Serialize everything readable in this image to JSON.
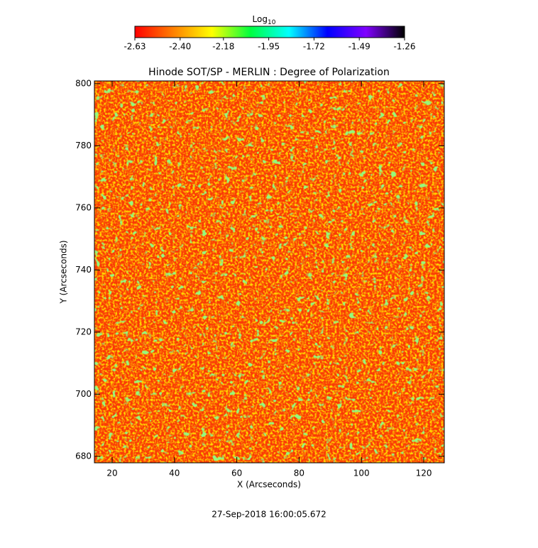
{
  "chart_data": {
    "type": "image",
    "title": "Hinode SOT/SP - MERLIN : Degree of Polarization",
    "xlabel": "X (Arcseconds)",
    "ylabel": "Y (Arcseconds)",
    "xlim": [
      14.3,
      126.6
    ],
    "ylim": [
      677.9,
      800.9
    ],
    "xticks": [
      20,
      40,
      60,
      80,
      100,
      120
    ],
    "yticks": [
      680,
      700,
      720,
      740,
      760,
      780,
      800
    ],
    "colorbar": {
      "label": "Log",
      "label_subscript": "10",
      "clim": [
        -2.63,
        -1.26
      ],
      "colors": [
        "#ff0000",
        "#ff8000",
        "#ffff00",
        "#00ff40",
        "#00ffff",
        "#0000ff",
        "#8000ff",
        "#000000"
      ],
      "ticks": [
        -2.63,
        {
          "value": -2.4,
          "label": "-2.40"
        },
        -2.18,
        -1.95,
        -1.72,
        -1.49,
        -1.26
      ]
    },
    "footer": "27-Sep-2018 16:00:05.672"
  }
}
